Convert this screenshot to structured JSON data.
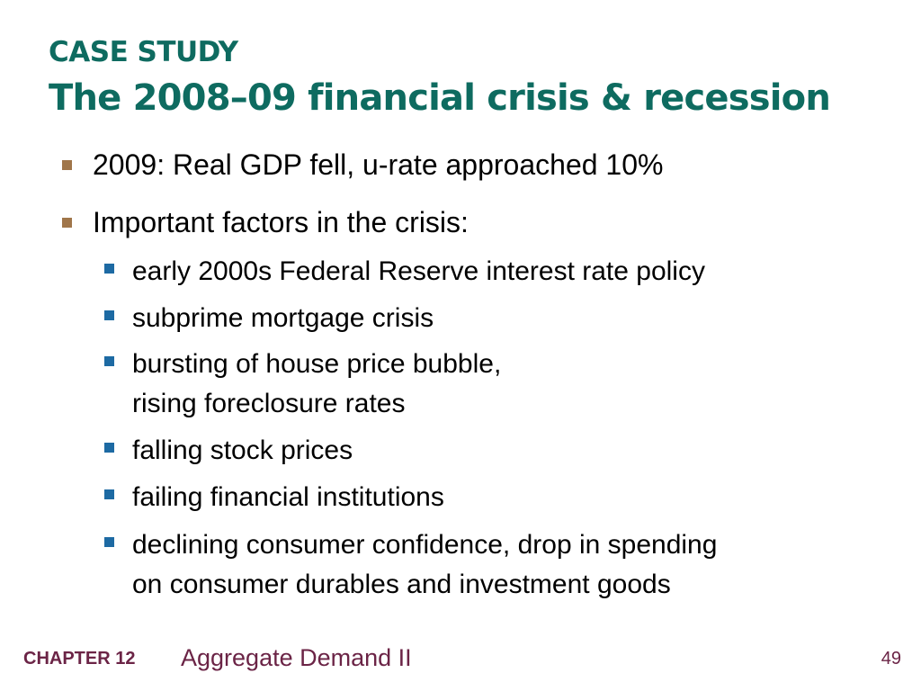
{
  "slide": {
    "kicker": "CASE STUDY",
    "title": "The 2008–09 financial crisis & recession",
    "bullets": [
      {
        "text": "2009:  Real GDP fell, u-rate approached 10%"
      },
      {
        "text": "Important factors in the crisis:"
      }
    ],
    "subbullets": [
      {
        "lines": [
          "early 2000s Federal Reserve interest rate policy"
        ]
      },
      {
        "lines": [
          "subprime mortgage crisis"
        ]
      },
      {
        "lines": [
          "bursting of house price bubble,",
          "rising foreclosure rates"
        ]
      },
      {
        "lines": [
          "falling stock prices"
        ]
      },
      {
        "lines": [
          "failing financial institutions"
        ]
      },
      {
        "lines": [
          "declining consumer confidence, drop in spending",
          "on consumer durables and investment goods"
        ]
      }
    ]
  },
  "footer": {
    "chapter": "CHAPTER 12",
    "title": "Aggregate Demand II",
    "page": "49"
  },
  "colors": {
    "title": "#0e6b60",
    "bullet_l1": "#a0764a",
    "bullet_l2": "#1d6aa3",
    "footer": "#6b2446"
  }
}
